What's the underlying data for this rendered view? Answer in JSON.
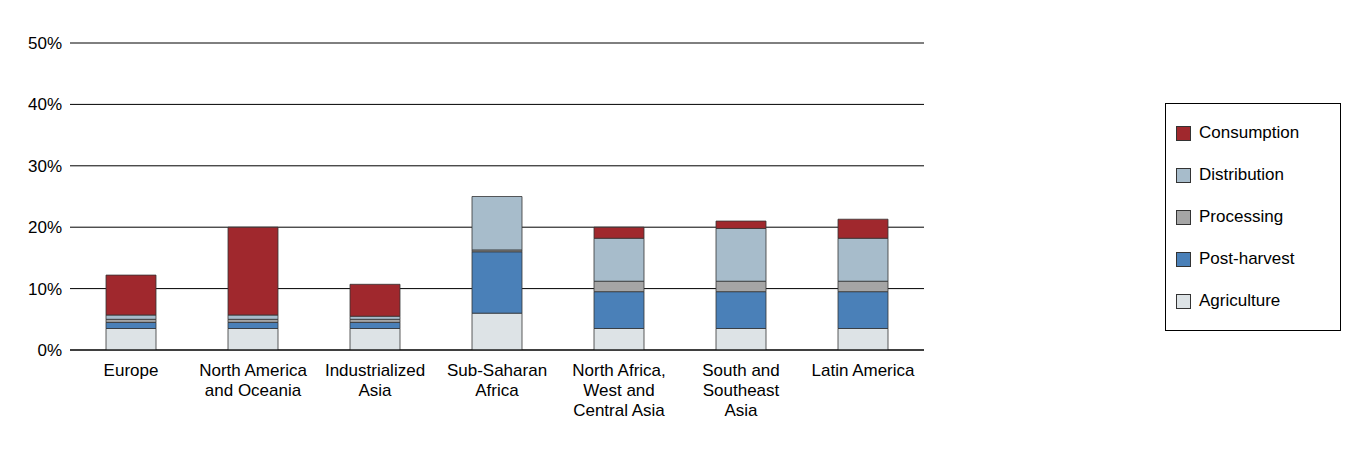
{
  "chart_data": {
    "type": "bar",
    "stacked": true,
    "categories": [
      "Europe",
      "North America and Oceania",
      "Industrialized Asia",
      "Sub-Saharan Africa",
      "North Africa, West and Central Asia",
      "South and Southeast Asia",
      "Latin America"
    ],
    "series": [
      {
        "name": "Agriculture",
        "color": "#dde3e6",
        "values": [
          3.5,
          3.5,
          3.5,
          6,
          3.5,
          3.5,
          3.5
        ]
      },
      {
        "name": "Post-harvest",
        "color": "#4a80b8",
        "values": [
          1,
          1,
          1,
          10,
          6,
          6,
          6
        ]
      },
      {
        "name": "Processing",
        "color": "#a5a5a5",
        "values": [
          0.5,
          0.5,
          0.5,
          0.3,
          1.7,
          1.7,
          1.7
        ]
      },
      {
        "name": "Distribution",
        "color": "#a7bccb",
        "values": [
          0.7,
          0.7,
          0.5,
          8.7,
          7,
          8.6,
          7
        ]
      },
      {
        "name": "Consumption",
        "color": "#a0282d",
        "values": [
          6.5,
          14.3,
          5.2,
          0,
          1.8,
          1.2,
          3.1
        ]
      }
    ],
    "ylim": [
      0,
      50
    ],
    "yticks": [
      {
        "value": 0,
        "label": "0%"
      },
      {
        "value": 10,
        "label": "10%"
      },
      {
        "value": 20,
        "label": "20%"
      },
      {
        "value": 30,
        "label": "30%"
      },
      {
        "value": 40,
        "label": "40%"
      },
      {
        "value": 50,
        "label": "50%"
      }
    ],
    "grid": true,
    "legend": "right"
  }
}
